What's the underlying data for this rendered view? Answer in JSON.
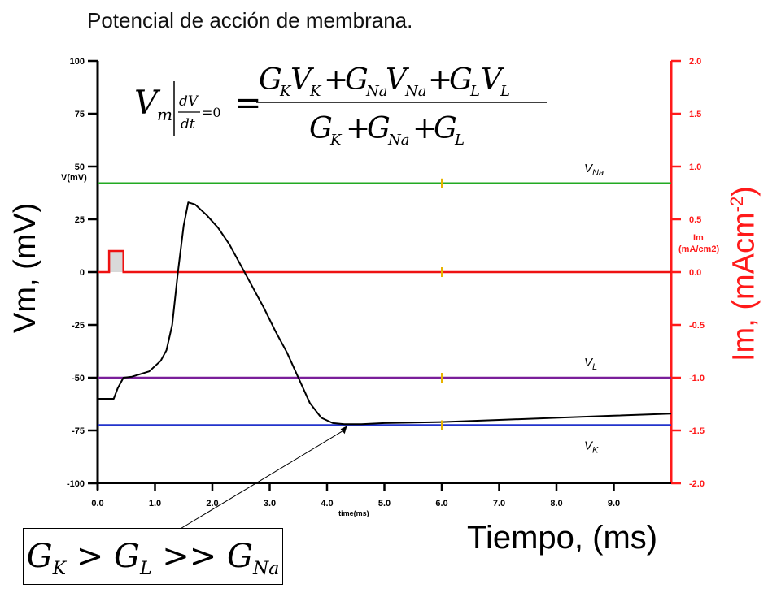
{
  "chart_data": {
    "type": "line",
    "title": "Potencial de acción de membrana.",
    "xlabel": "Tiempo, (ms)",
    "xlabel_small": "time(ms)",
    "ylabel_left": "Vm, (mV)",
    "ylabel_left_small": "V(mV)",
    "ylabel_right": "Im, (mAcm",
    "ylabel_right_sup": "-2",
    "ylabel_right_close": ")",
    "ylabel_right_small": [
      "Im",
      "(mA/cm2)"
    ],
    "xlim": [
      0,
      10
    ],
    "ylim_left": [
      -100,
      100
    ],
    "ylim_right": [
      -2.0,
      2.0
    ],
    "x_ticks": [
      "0.0",
      "1.0",
      "2.0",
      "3.0",
      "4.0",
      "5.0",
      "6.0",
      "7.0",
      "8.0",
      "9.0"
    ],
    "y_ticks_left": [
      "100",
      "75",
      "50",
      "25",
      "0",
      "-25",
      "-50",
      "-75",
      "-100"
    ],
    "y_ticks_right": [
      "2.0",
      "1.5",
      "1.0",
      "0.5",
      "0.0",
      "-0.5",
      "-1.0",
      "-1.5",
      "-2.0"
    ],
    "reference_lines": [
      {
        "name": "V",
        "sub": "Na",
        "value": 42,
        "color": "#22aa22"
      },
      {
        "name": "V",
        "sub": "L",
        "value": -50,
        "color": "#7a1f9a"
      },
      {
        "name": "V",
        "sub": "K",
        "value": -72.5,
        "color": "#2233cc"
      }
    ],
    "current_series": {
      "color": "#ee1111",
      "x": [
        0,
        0.2,
        0.2,
        0.45,
        0.45,
        10
      ],
      "y": [
        0,
        0,
        0.2,
        0.2,
        0,
        0
      ]
    },
    "voltage_series": {
      "color": "#000000",
      "x": [
        0,
        0.28,
        0.35,
        0.45,
        0.6,
        0.9,
        1.1,
        1.2,
        1.3,
        1.4,
        1.5,
        1.58,
        1.7,
        1.9,
        2.1,
        2.3,
        2.5,
        2.7,
        2.9,
        3.1,
        3.3,
        3.5,
        3.7,
        3.9,
        4.1,
        4.3,
        4.6,
        5.0,
        6.0,
        7.0,
        8.0,
        9.0,
        10.0
      ],
      "y": [
        -60,
        -60,
        -55,
        -50,
        -49.5,
        -47,
        -42,
        -37,
        -25,
        0,
        22,
        33,
        32,
        27,
        21,
        13,
        3,
        -7,
        -17,
        -28,
        -38,
        -50,
        -62,
        -69,
        -71.5,
        -72,
        -72,
        -71.5,
        -71,
        -70,
        -69,
        -68,
        -67
      ]
    },
    "cursor_x": 6.0,
    "equation": {
      "lhs": "V",
      "lhs_sub": "m",
      "cond_num": "dV",
      "cond_den": "dt",
      "cond_eq": "=0",
      "numerator": [
        {
          "g": "G",
          "gsub": "K",
          "v": "V",
          "vsub": "K"
        },
        {
          "g": "G",
          "gsub": "Na",
          "v": "V",
          "vsub": "Na"
        },
        {
          "g": "G",
          "gsub": "L",
          "v": "V",
          "vsub": "L"
        }
      ],
      "denominator": [
        {
          "g": "G",
          "gsub": "K"
        },
        {
          "g": "G",
          "gsub": "Na"
        },
        {
          "g": "G",
          "gsub": "L"
        }
      ]
    },
    "inequality": {
      "a": "G",
      "a_sub": "K",
      "op1": ">",
      "b": "G",
      "b_sub": "L",
      "op2": ">>",
      "c": "G",
      "c_sub": "Na"
    }
  }
}
